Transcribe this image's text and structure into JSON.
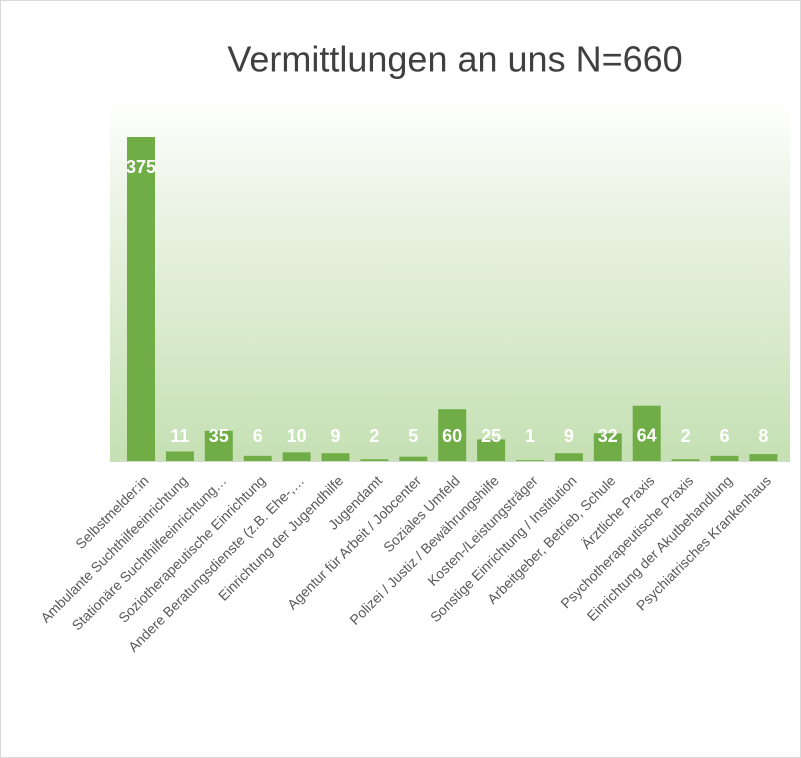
{
  "chart_data": {
    "type": "bar",
    "title": "Vermittlungen an uns N=660",
    "categories": [
      "Selbstmelder:in",
      "Ambulante Suchthilfeeinrichtung",
      "Stationäre Suchthilfeeinrichtung…",
      "Soziotherapeutische Einrichtung",
      "Andere Beratungsdienste (z.B. Ehe-,…",
      "Einrichtung der Jugendhilfe",
      "Jugendamt",
      "Agentur für Arbeit / Jobcenter",
      "Soziales Umfeld",
      "Polizei / Justiz / Bewährungshilfe",
      "Kosten-/Leistungsträger",
      "Sonstige Einrichtung / Institution",
      "Arbeitgeber, Betrieb, Schule",
      "Ärztliche Praxis",
      "Psychotherapeutische Praxis",
      "Einrichtung der Akutbehandlung",
      "Psychiatrisches Krankenhaus"
    ],
    "values": [
      375,
      11,
      35,
      6,
      10,
      9,
      2,
      5,
      60,
      25,
      1,
      9,
      32,
      64,
      2,
      6,
      8
    ],
    "color": "#70ad47"
  }
}
